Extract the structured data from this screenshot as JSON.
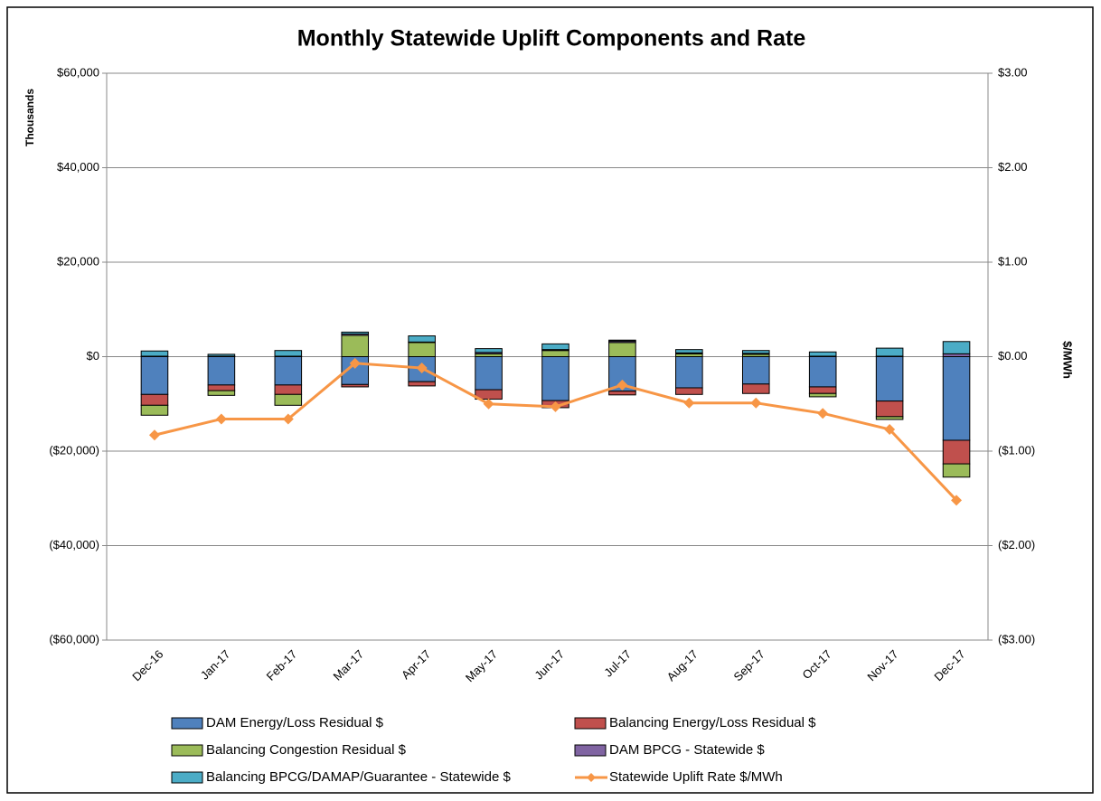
{
  "chart_data": {
    "type": "bar",
    "stacked": true,
    "title": "Monthly Statewide Uplift Components and Rate",
    "y_label": "Thousands",
    "y2_label": "$/MWh",
    "categories": [
      "Dec-16",
      "Jan-17",
      "Feb-17",
      "Mar-17",
      "Apr-17",
      "May-17",
      "Jun-17",
      "Jul-17",
      "Aug-17",
      "Sep-17",
      "Oct-17",
      "Nov-17",
      "Dec-17"
    ],
    "series": [
      {
        "name": "DAM Energy/Loss Residual $",
        "color": "#4f81bd",
        "values": [
          -8000,
          -6000,
          -6000,
          -5900,
          -5300,
          -7000,
          -9300,
          -7300,
          -6600,
          -5800,
          -6400,
          -9400,
          -17700
        ]
      },
      {
        "name": "Balancing Energy/Loss Residual $",
        "color": "#c0504d",
        "values": [
          -2300,
          -1200,
          -2000,
          -500,
          -900,
          -2000,
          -1500,
          -800,
          -1400,
          -2000,
          -1400,
          -3300,
          -5000
        ]
      },
      {
        "name": "Balancing Congestion Residual $",
        "color": "#9bbb59",
        "values": [
          -2100,
          -1000,
          -2300,
          4500,
          3000,
          600,
          1300,
          3000,
          600,
          500,
          -700,
          -600,
          -2800
        ]
      },
      {
        "name": "DAM BPCG - Statewide $",
        "color": "#8064a2",
        "values": [
          100,
          100,
          100,
          300,
          100,
          300,
          200,
          300,
          200,
          200,
          100,
          100,
          600
        ]
      },
      {
        "name": "Balancing BPCG/DAMAP/Guarantee  - Statewide $",
        "color": "#4bacc6",
        "values": [
          1100,
          400,
          1200,
          400,
          1300,
          800,
          1200,
          200,
          700,
          600,
          900,
          1700,
          2600
        ]
      },
      {
        "name": "Statewide Uplift Rate $/MWh",
        "color": "#f79646",
        "type": "line",
        "axis": "y2",
        "values": [
          -0.83,
          -0.66,
          -0.66,
          -0.07,
          -0.12,
          -0.5,
          -0.53,
          -0.3,
          -0.49,
          -0.49,
          -0.6,
          -0.77,
          -1.52
        ]
      }
    ],
    "ylim": [
      -60000,
      60000
    ],
    "yticks": [
      {
        "value": 60000,
        "label": "$60,000"
      },
      {
        "value": 40000,
        "label": "$40,000"
      },
      {
        "value": 20000,
        "label": "$20,000"
      },
      {
        "value": 0,
        "label": "$0"
      },
      {
        "value": -20000,
        "label": "($20,000)"
      },
      {
        "value": -40000,
        "label": "($40,000)"
      },
      {
        "value": -60000,
        "label": "($60,000)"
      }
    ],
    "y2lim": [
      -3,
      3
    ],
    "y2ticks": [
      {
        "value": 3,
        "label": "$3.00"
      },
      {
        "value": 2,
        "label": "$2.00"
      },
      {
        "value": 1,
        "label": "$1.00"
      },
      {
        "value": 0,
        "label": "$0.00"
      },
      {
        "value": -1,
        "label": "($1.00)"
      },
      {
        "value": -2,
        "label": "($2.00)"
      },
      {
        "value": -3,
        "label": "($3.00)"
      }
    ],
    "negative_tick_color": "#ff0000",
    "grid": true,
    "legend": "bottom"
  }
}
